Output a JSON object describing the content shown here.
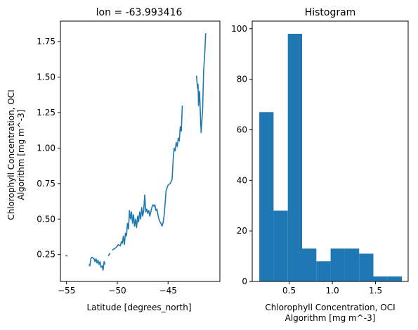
{
  "colors": {
    "line": "#1f77b4",
    "bar": "#1f77b4",
    "axis": "#000000",
    "background": "#ffffff"
  },
  "chart_data": [
    {
      "type": "line",
      "title": "lon = -63.993416",
      "xlabel": "Latitude [degrees_north]",
      "ylabel_lines": [
        "Chlorophyll Concentration, OCI",
        "Algorithm [mg m^-3]"
      ],
      "xlim": [
        -55.6,
        -39.9
      ],
      "ylim": [
        0.06,
        1.895
      ],
      "grid": false,
      "xticks": [
        {
          "value": -55,
          "label": "−55"
        },
        {
          "value": -50,
          "label": "−50"
        },
        {
          "value": -45,
          "label": "−45"
        }
      ],
      "yticks": [
        {
          "value": 0.25,
          "label": "0.25"
        },
        {
          "value": 0.5,
          "label": "0.50"
        },
        {
          "value": 0.75,
          "label": "0.75"
        },
        {
          "value": 1.0,
          "label": "1.00"
        },
        {
          "value": 1.25,
          "label": "1.25"
        },
        {
          "value": 1.5,
          "label": "1.50"
        },
        {
          "value": 1.75,
          "label": "1.75"
        }
      ],
      "segments": [
        [
          [
            -55.1,
            0.245
          ],
          [
            -54.9,
            0.24
          ]
        ],
        [
          [
            -52.8,
            0.18
          ],
          [
            -52.7,
            0.17
          ],
          [
            -52.6,
            0.22
          ],
          [
            -52.5,
            0.23
          ],
          [
            -52.3,
            0.22
          ],
          [
            -52.2,
            0.2
          ],
          [
            -52.1,
            0.22
          ],
          [
            -52.0,
            0.19
          ],
          [
            -51.9,
            0.21
          ],
          [
            -51.8,
            0.18
          ],
          [
            -51.7,
            0.2
          ],
          [
            -51.6,
            0.16
          ],
          [
            -51.5,
            0.17
          ],
          [
            -51.4,
            0.14
          ],
          [
            -51.3,
            0.2
          ],
          [
            -51.2,
            0.18
          ]
        ],
        [
          [
            -50.9,
            0.24
          ],
          [
            -50.7,
            0.26
          ]
        ],
        [
          [
            -50.5,
            0.28
          ],
          [
            -50.3,
            0.29
          ],
          [
            -50.1,
            0.3
          ],
          [
            -49.9,
            0.32
          ],
          [
            -49.7,
            0.31
          ],
          [
            -49.6,
            0.34
          ],
          [
            -49.5,
            0.33
          ],
          [
            -49.4,
            0.38
          ],
          [
            -49.3,
            0.32
          ],
          [
            -49.2,
            0.4
          ],
          [
            -49.1,
            0.38
          ],
          [
            -49.0,
            0.47
          ],
          [
            -48.9,
            0.43
          ],
          [
            -48.8,
            0.56
          ],
          [
            -48.7,
            0.5
          ],
          [
            -48.6,
            0.55
          ],
          [
            -48.5,
            0.47
          ],
          [
            -48.4,
            0.53
          ],
          [
            -48.3,
            0.45
          ],
          [
            -48.2,
            0.5
          ],
          [
            -48.1,
            0.44
          ],
          [
            -48.0,
            0.52
          ],
          [
            -47.9,
            0.48
          ],
          [
            -47.8,
            0.55
          ],
          [
            -47.7,
            0.5
          ],
          [
            -47.6,
            0.58
          ],
          [
            -47.5,
            0.52
          ],
          [
            -47.4,
            0.56
          ],
          [
            -47.3,
            0.67
          ],
          [
            -47.2,
            0.55
          ],
          [
            -47.1,
            0.57
          ],
          [
            -47.0,
            0.54
          ],
          [
            -46.9,
            0.56
          ],
          [
            -46.8,
            0.52
          ],
          [
            -46.7,
            0.55
          ],
          [
            -46.6,
            0.58
          ],
          [
            -46.5,
            0.6
          ],
          [
            -46.4,
            0.59
          ],
          [
            -46.3,
            0.6
          ],
          [
            -46.2,
            0.56
          ],
          [
            -46.1,
            0.57
          ],
          [
            -46.0,
            0.53
          ],
          [
            -45.9,
            0.5
          ],
          [
            -45.8,
            0.48
          ],
          [
            -45.7,
            0.47
          ],
          [
            -45.6,
            0.45
          ],
          [
            -45.5,
            0.47
          ],
          [
            -45.4,
            0.52
          ],
          [
            -45.3,
            0.6
          ],
          [
            -45.2,
            0.7
          ],
          [
            -45.0,
            0.74
          ],
          [
            -44.8,
            0.75
          ],
          [
            -44.6,
            0.78
          ],
          [
            -44.5,
            0.92
          ],
          [
            -44.4,
            1.0
          ],
          [
            -44.3,
            0.98
          ],
          [
            -44.2,
            1.04
          ],
          [
            -44.1,
            1.01
          ],
          [
            -44.0,
            1.07
          ],
          [
            -43.9,
            1.05
          ],
          [
            -43.8,
            1.15
          ],
          [
            -43.7,
            1.12
          ],
          [
            -43.6,
            1.3
          ]
        ],
        [
          [
            -42.2,
            1.51
          ],
          [
            -42.1,
            1.42
          ],
          [
            -42.05,
            1.45
          ],
          [
            -42.0,
            1.3
          ],
          [
            -41.9,
            1.4
          ],
          [
            -41.8,
            1.2
          ],
          [
            -41.75,
            1.11
          ],
          [
            -41.6,
            1.27
          ],
          [
            -41.5,
            1.55
          ],
          [
            -41.4,
            1.65
          ],
          [
            -41.3,
            1.81
          ]
        ]
      ]
    },
    {
      "type": "bar",
      "title": "Histogram",
      "xlabel_lines": [
        "Chlorophyll Concentration, OCI",
        "Algorithm [mg m^-3]"
      ],
      "xlim": [
        0.0725,
        1.8775
      ],
      "ylim": [
        0,
        103
      ],
      "grid": false,
      "xticks": [
        {
          "value": 0.5,
          "label": "0.5"
        },
        {
          "value": 1.0,
          "label": "1.0"
        },
        {
          "value": 1.5,
          "label": "1.5"
        }
      ],
      "yticks": [
        {
          "value": 0,
          "label": "0"
        },
        {
          "value": 20,
          "label": "20"
        },
        {
          "value": 40,
          "label": "40"
        },
        {
          "value": 60,
          "label": "60"
        },
        {
          "value": 80,
          "label": "80"
        },
        {
          "value": 100,
          "label": "100"
        }
      ],
      "bin_edges": [
        0.155,
        0.32,
        0.485,
        0.65,
        0.815,
        0.98,
        1.145,
        1.31,
        1.475,
        1.64,
        1.805
      ],
      "counts": [
        67,
        28,
        98,
        13,
        8,
        13,
        13,
        11,
        2,
        2
      ]
    }
  ]
}
